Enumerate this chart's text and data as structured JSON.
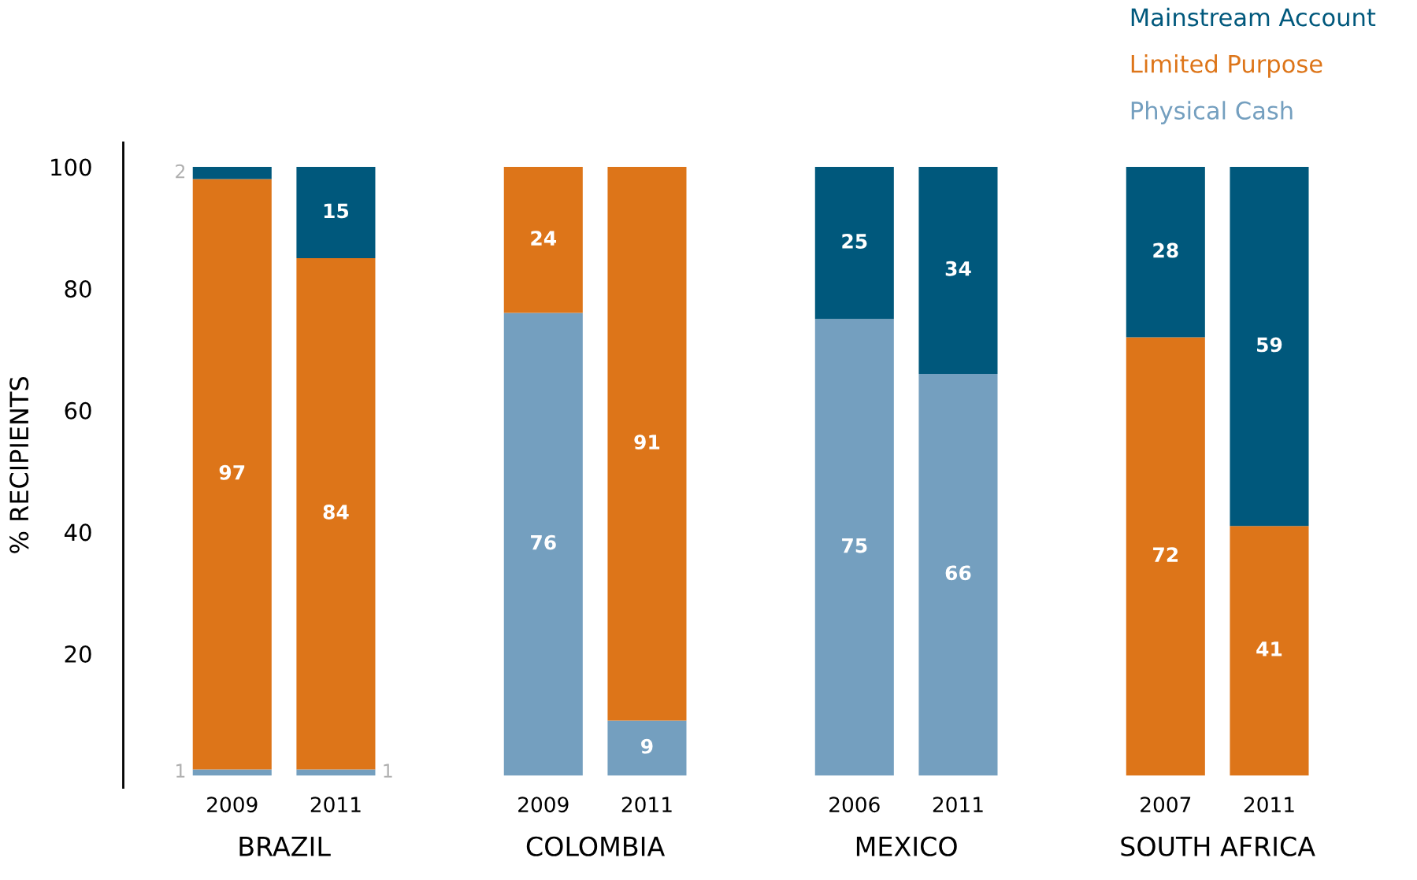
{
  "chart_data": {
    "type": "bar",
    "stacked": true,
    "ylabel": "% RECIPIENTS",
    "categories": [
      "2009",
      "2011",
      null,
      "2009",
      "2011",
      null,
      "2006",
      "2011",
      null,
      "2007",
      "2011"
    ],
    "series": [
      {
        "name": "Physical Cash",
        "color": "#749fbf",
        "values": [
          1,
          1,
          null,
          76,
          9,
          null,
          75,
          66,
          null,
          null,
          null
        ]
      },
      {
        "name": "Limited Purpose",
        "color": "#dd7519",
        "values": [
          97,
          84,
          null,
          24,
          91,
          null,
          null,
          null,
          null,
          72,
          41
        ]
      },
      {
        "name": "Mainstream Account",
        "color": "#00587c",
        "values": [
          2,
          15,
          null,
          null,
          null,
          null,
          25,
          34,
          null,
          28,
          59
        ]
      }
    ],
    "data_labels": true,
    "ylim": [
      -2,
      104
    ],
    "yticks": [
      20,
      40,
      60,
      80,
      100
    ],
    "annotations": [
      "BRAZIL",
      "COLOMBIA",
      "MEXICO",
      "SOUTH AFRICA"
    ],
    "legend": "top right",
    "grid": false
  }
}
